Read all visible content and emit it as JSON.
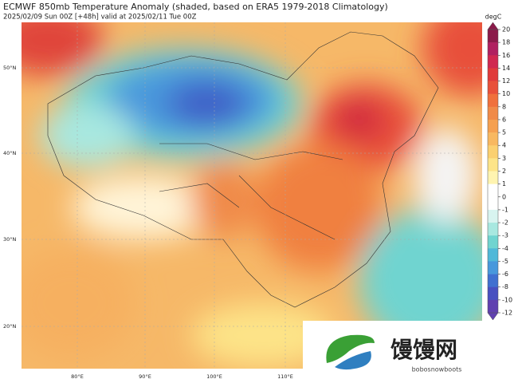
{
  "title": "ECMWF 850mb Temperature Anomaly (shaded, based on ERA5 1979-2018 Climatology)",
  "subtitle": "2025/02/09 Sun 00Z [+48h] valid at 2025/02/11 Tue 00Z",
  "lat_labels": [
    "50°N",
    "40°N",
    "30°N",
    "20°N"
  ],
  "lon_labels": [
    "80°E",
    "90°E",
    "100°E",
    "110°E"
  ],
  "colorbar": {
    "unit": "degC",
    "ticks": [
      20,
      18,
      16,
      14,
      12,
      10,
      8,
      6,
      5,
      4,
      3,
      2,
      1,
      0,
      -1,
      -2,
      -3,
      -4,
      -5,
      -6,
      -8,
      -10,
      -12
    ],
    "colors": [
      "#8b1a4a",
      "#b02060",
      "#d02850",
      "#e03a3a",
      "#e8503a",
      "#f0703c",
      "#f08a48",
      "#f5a050",
      "#f8b860",
      "#fbd070",
      "#fde488",
      "#fff4b0",
      "#ffffff",
      "#ffffff",
      "#d8f4f0",
      "#a8e8e0",
      "#70d4d0",
      "#50b8d8",
      "#4898dc",
      "#4070d0",
      "#4850c0",
      "#6040b0"
    ]
  },
  "watermark": {
    "name": "馒馒网",
    "url": "bobosnowboots"
  }
}
